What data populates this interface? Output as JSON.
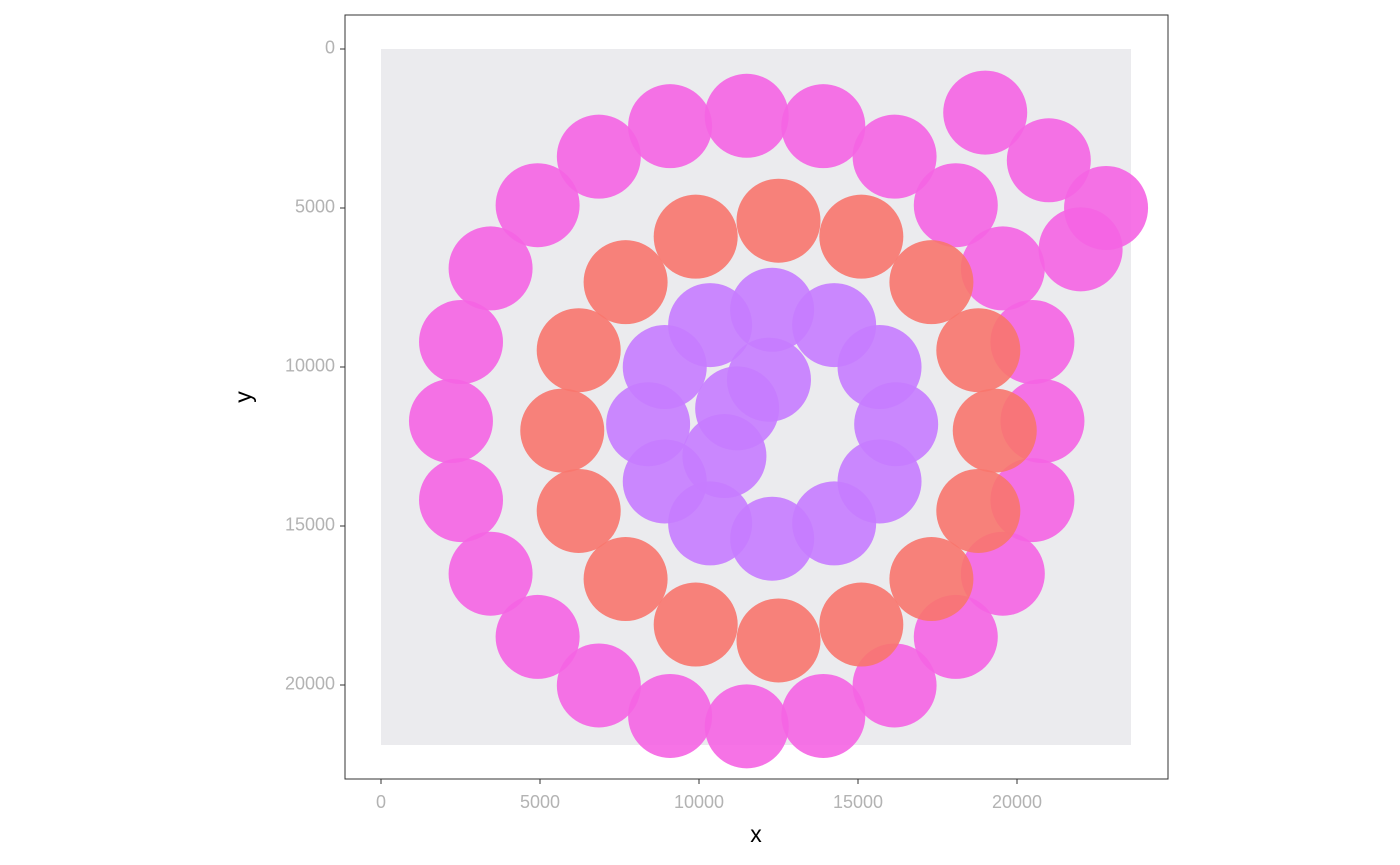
{
  "chart_data": {
    "type": "scatter",
    "x_label": "x",
    "y_label": "y",
    "xlim": [
      -1132,
      24748
    ],
    "ylim": [
      22956,
      -1069
    ],
    "xticks": [
      0,
      5000,
      10000,
      15000,
      20000
    ],
    "yticks": [
      0,
      5000,
      10000,
      15000,
      20000
    ],
    "grid": false,
    "series": [
      {
        "color": "#f564e3",
        "x": [
          20800,
          20484,
          19554,
          18075,
          16150,
          13909,
          11500,
          9091,
          6850,
          4925,
          3446,
          2516,
          2200,
          2516,
          3446,
          4925,
          6850,
          9091,
          11500,
          13909,
          16150,
          18075,
          19554,
          20484,
          19000,
          21000,
          22800,
          22000
        ],
        "y": [
          11700,
          14186,
          16500,
          18487,
          20014,
          20974,
          21300,
          20974,
          20014,
          18487,
          16500,
          14186,
          11700,
          9214,
          6900,
          4913,
          3386,
          2426,
          2100,
          2426,
          3386,
          4913,
          6900,
          9214,
          2000,
          3500,
          5000,
          6300
        ]
      },
      {
        "color": "#f8766d",
        "x": [
          19300,
          18783,
          17308,
          15104,
          12500,
          9896,
          7692,
          6217,
          5700,
          6217,
          7692,
          9896,
          12500,
          15104,
          17308,
          18783
        ],
        "y": [
          12000,
          14528,
          16667,
          18098,
          18600,
          18098,
          16667,
          14528,
          12000,
          9472,
          7333,
          5902,
          5400,
          5902,
          7333,
          9472
        ]
      },
      {
        "color": "#c77cff",
        "x": [
          16200,
          15677,
          14250,
          12300,
          10350,
          8923,
          8400,
          8923,
          10350,
          12300,
          14250,
          15677,
          10800,
          11200,
          12200
        ],
        "y": [
          11800,
          13600,
          14918,
          15400,
          14918,
          13600,
          11800,
          10000,
          8682,
          8200,
          8682,
          10000,
          12800,
          11300,
          10400
        ]
      }
    ]
  }
}
